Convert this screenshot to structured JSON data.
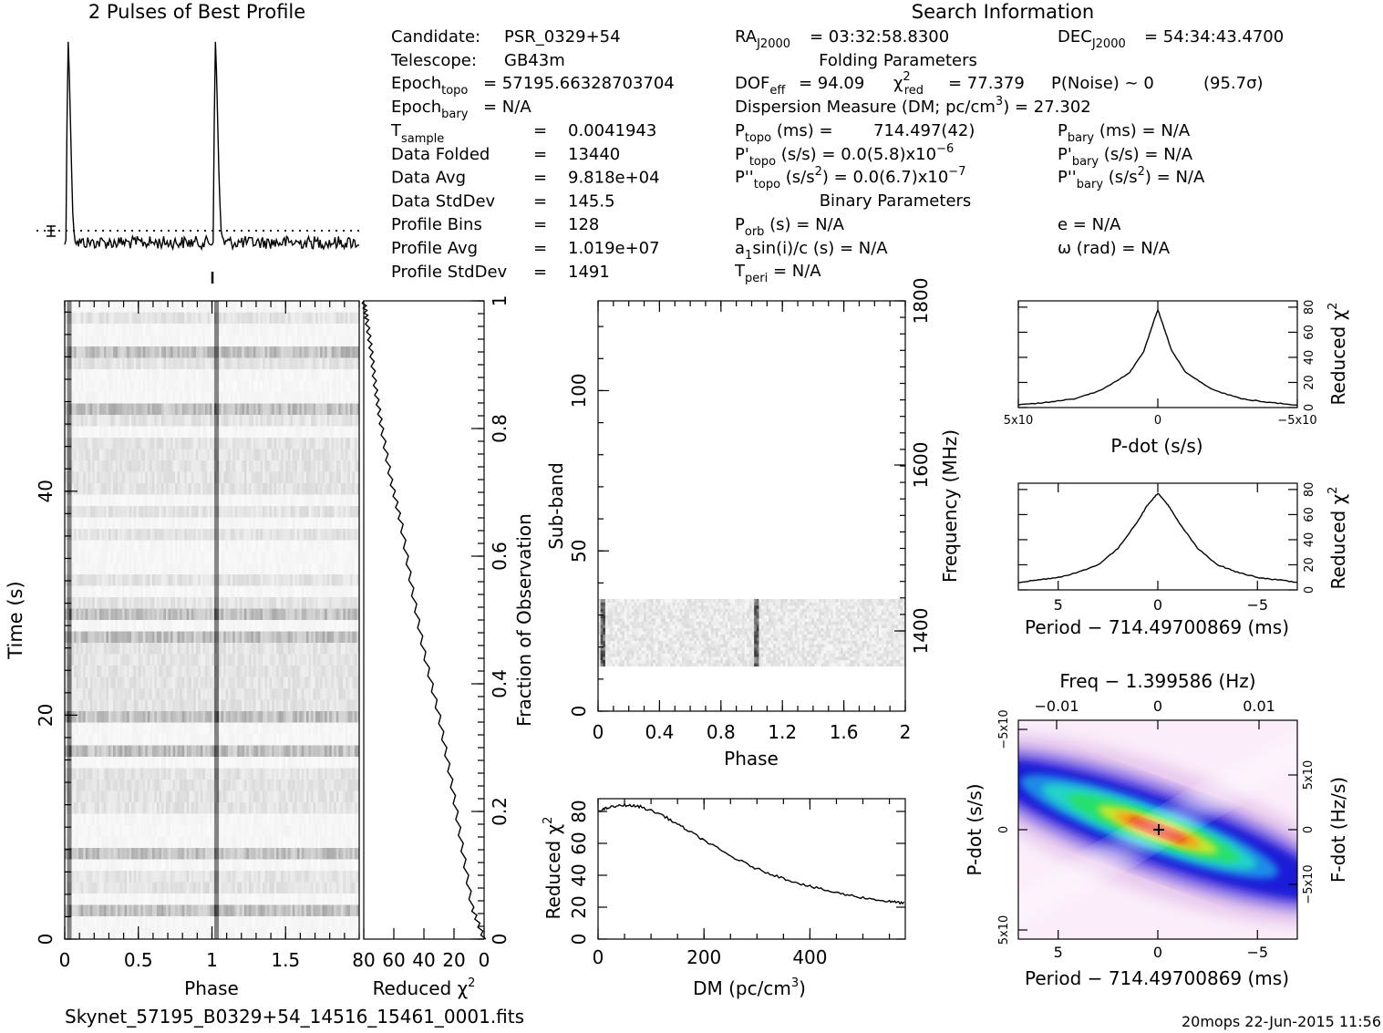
{
  "figure_title": "2 Pulses of Best Profile",
  "search_title": "Search Information",
  "folding_title": "Folding Parameters",
  "binary_title": "Binary Parameters",
  "candidate": {
    "label": "Candidate:",
    "value": "PSR_0329+54"
  },
  "telescope": {
    "label": "Telescope:",
    "value": "GB43m"
  },
  "epoch_topo": {
    "main": "Epoch",
    "sub": "topo",
    "value": "= 57195.66328703704"
  },
  "epoch_bary": {
    "main": "Epoch",
    "sub": "bary",
    "value": "= N/A"
  },
  "data_rows": [
    {
      "main": "T",
      "sub": "sample",
      "eq": "=",
      "value": "0.0041943"
    },
    {
      "main": "Data Folded",
      "sub": "",
      "eq": "=",
      "value": "13440"
    },
    {
      "main": "Data Avg",
      "sub": "",
      "eq": "=",
      "value": "9.818e+04"
    },
    {
      "main": "Data StdDev",
      "sub": "",
      "eq": "=",
      "value": "145.5"
    },
    {
      "main": "Profile Bins",
      "sub": "",
      "eq": "=",
      "value": "128"
    },
    {
      "main": "Profile Avg",
      "sub": "",
      "eq": "=",
      "value": "1.019e+07"
    },
    {
      "main": "Profile StdDev",
      "sub": "",
      "eq": "=",
      "value": "1491"
    }
  ],
  "ra": {
    "main": "RA",
    "sub": "J2000",
    "value": "= 03:32:58.8300"
  },
  "dec": {
    "main": "DEC",
    "sub": "J2000",
    "value": "= 54:34:43.4700"
  },
  "dof": {
    "main": "DOF",
    "sub": "eff",
    "value": "= 94.09"
  },
  "chi2": {
    "main": "χ",
    "sup": "2",
    "sub": "red",
    "value": "= 77.379"
  },
  "pnoise": {
    "text": "P(Noise) ~ 0",
    "sigma": "(95.7σ)"
  },
  "dm_line": {
    "text": "Dispersion Measure (DM; pc/cm",
    "sup": "3",
    "value": ") = 27.302"
  },
  "ptopo": {
    "main": "P",
    "sub": "topo",
    "unit": " (ms) =",
    "value": "714.497(42)"
  },
  "pdtopo": {
    "main": "P'",
    "sub": "topo",
    "unit": " (s/s) = ",
    "value": "0.0(5.8)x10",
    "exp": "−6"
  },
  "pddtopo": {
    "main": "P''",
    "sub": "topo",
    "unit": " (s/s",
    "unit_sup": "2",
    "value": ") = 0.0(6.7)x10",
    "exp": "−7"
  },
  "pbary": {
    "main": "P",
    "sub": "bary",
    "value": " (ms) = N/A"
  },
  "pdbary": {
    "main": "P'",
    "sub": "bary",
    "value": " (s/s) = N/A"
  },
  "pddbary": {
    "main": "P''",
    "sub": "bary",
    "value": " (s/s",
    "unit_sup": "2",
    "tail": ") = N/A"
  },
  "porb": {
    "main": "P",
    "sub": "orb",
    "value": " (s) = N/A"
  },
  "a1": {
    "main": "a",
    "sub": "1",
    "value": "sin(i)/c (s) = N/A"
  },
  "tperi": {
    "main": "T",
    "sub": "peri",
    "value": " = N/A"
  },
  "ecc": {
    "text": "e = N/A"
  },
  "omega": {
    "text": "ω (rad) = N/A"
  },
  "footer_file": "Skynet_57195_B0329+54_14516_15461_0001.fits",
  "footer_stamp": "20mops 22-Jun-2015 11:56",
  "colors": {
    "ink": "#000000",
    "grayscale_low": "#ffffff",
    "grayscale_high": "#000000"
  },
  "chart_data": [
    {
      "type": "line",
      "name": "profile",
      "title": "2 Pulses of Best Profile",
      "x_range": [
        0,
        2
      ],
      "peak_phases": [
        0.02,
        1.02
      ]
    },
    {
      "type": "heatmap",
      "name": "time-phase",
      "xlabel": "Phase",
      "ylabel": "Time (s)",
      "x_ticks": [
        "0",
        "0.5",
        "1",
        "1.5"
      ],
      "y_ticks": [
        "0",
        "20",
        "40"
      ],
      "x_range": [
        0,
        2
      ],
      "y_range": [
        0,
        57
      ],
      "right_axis_label": "Fraction of Observation",
      "right_ticks": [
        "0",
        "0.2",
        "0.4",
        "0.6",
        "0.8",
        "1"
      ]
    },
    {
      "type": "line",
      "name": "chi2-vs-time",
      "xlabel": "Reduced χ2",
      "x_ticks": [
        "80",
        "60",
        "40",
        "20",
        "0"
      ],
      "x_range": [
        80,
        0
      ],
      "y_range": [
        0,
        1
      ],
      "points": [
        [
          0,
          0
        ],
        [
          8,
          0.05
        ],
        [
          15,
          0.15
        ],
        [
          22,
          0.25
        ],
        [
          30,
          0.35
        ],
        [
          40,
          0.45
        ],
        [
          48,
          0.55
        ],
        [
          55,
          0.65
        ],
        [
          62,
          0.72
        ],
        [
          68,
          0.8
        ],
        [
          72,
          0.86
        ],
        [
          75,
          0.92
        ],
        [
          78,
          0.97
        ],
        [
          80,
          1.0
        ]
      ]
    },
    {
      "type": "heatmap",
      "name": "subband-phase",
      "xlabel": "Phase",
      "ylabel": "Sub-band",
      "x_ticks": [
        "0",
        "0.4",
        "0.8",
        "1.2",
        "1.6",
        "2"
      ],
      "y_ticks": [
        "0",
        "50",
        "100"
      ],
      "x_range": [
        0,
        2
      ],
      "y_range": [
        0,
        128
      ],
      "occupied_subbands": [
        14,
        35
      ],
      "right_axis_label": "Frequency (MHz)",
      "right_ticks": [
        "1400",
        "1600",
        "1800"
      ]
    },
    {
      "type": "line",
      "name": "chi2-vs-dm",
      "xlabel": "DM (pc/cm3)",
      "ylabel": "Reduced χ2",
      "x_ticks": [
        "0",
        "200",
        "400"
      ],
      "y_ticks": [
        "0",
        "20",
        "40",
        "60",
        "80"
      ],
      "x_range": [
        0,
        580
      ],
      "y_range": [
        0,
        88
      ],
      "points": [
        [
          0,
          80
        ],
        [
          20,
          82.5
        ],
        [
          50,
          84
        ],
        [
          80,
          83
        ],
        [
          120,
          78
        ],
        [
          160,
          70
        ],
        [
          200,
          62
        ],
        [
          250,
          52
        ],
        [
          300,
          44
        ],
        [
          350,
          38
        ],
        [
          400,
          33
        ],
        [
          450,
          29
        ],
        [
          500,
          26
        ],
        [
          550,
          23.5
        ],
        [
          580,
          22.5
        ]
      ]
    },
    {
      "type": "line",
      "name": "chi2-vs-pdot",
      "xlabel": "P-dot (s/s)",
      "ylabel": "Reduced χ2",
      "x_ticks": [
        "5x10-4",
        "0",
        "-5x10-4"
      ],
      "y_ticks": [
        "0",
        "20",
        "40",
        "60",
        "80"
      ],
      "x_range": [
        0.0005,
        -0.0005
      ],
      "y_range": [
        0,
        85
      ],
      "points": [
        [
          0.0005,
          2
        ],
        [
          0.0004,
          4
        ],
        [
          0.0003,
          7
        ],
        [
          0.0002,
          14
        ],
        [
          0.0001,
          28
        ],
        [
          5e-05,
          45
        ],
        [
          2e-05,
          65
        ],
        [
          0,
          78
        ],
        [
          -2e-05,
          65
        ],
        [
          -5e-05,
          45
        ],
        [
          -0.0001,
          28
        ],
        [
          -0.0002,
          14
        ],
        [
          -0.0003,
          7
        ],
        [
          -0.0004,
          4
        ],
        [
          -0.0005,
          2
        ]
      ]
    },
    {
      "type": "line",
      "name": "chi2-vs-period",
      "xlabel": "Period − 714.49700869 (ms)",
      "ylabel": "Reduced χ2",
      "x_ticks": [
        "5",
        "0",
        "−5"
      ],
      "y_ticks": [
        "0",
        "20",
        "40",
        "60",
        "80"
      ],
      "x_range": [
        7,
        -7
      ],
      "y_range": [
        0,
        85
      ],
      "points": [
        [
          7,
          6
        ],
        [
          6,
          8
        ],
        [
          5,
          10
        ],
        [
          4,
          14
        ],
        [
          3,
          20
        ],
        [
          2,
          33
        ],
        [
          1,
          55
        ],
        [
          0.5,
          68
        ],
        [
          0,
          77
        ],
        [
          -0.5,
          68
        ],
        [
          -1,
          55
        ],
        [
          -2,
          33
        ],
        [
          -3,
          20
        ],
        [
          -4,
          14
        ],
        [
          -5,
          10
        ],
        [
          -6,
          8
        ],
        [
          -7,
          6
        ]
      ]
    },
    {
      "type": "heatmap",
      "name": "period-pdot",
      "top_label": "Freq − 1.399586 (Hz)",
      "top_ticks": [
        "−0.01",
        "0",
        "0.01"
      ],
      "xlabel": "Period − 714.49700869 (ms)",
      "x_ticks": [
        "5",
        "0",
        "−5"
      ],
      "ylabel": "P-dot (s/s)",
      "y_ticks": [
        "5x10-4",
        "0",
        "−5x10-4"
      ],
      "right_label": "F-dot (Hz/s)",
      "right_ticks": [
        "5x10-4",
        "0",
        "−5x10-4"
      ],
      "x_range": [
        7,
        -7
      ],
      "y_range": [
        -0.0005,
        0.0005
      ],
      "best": [
        0,
        0
      ]
    }
  ]
}
